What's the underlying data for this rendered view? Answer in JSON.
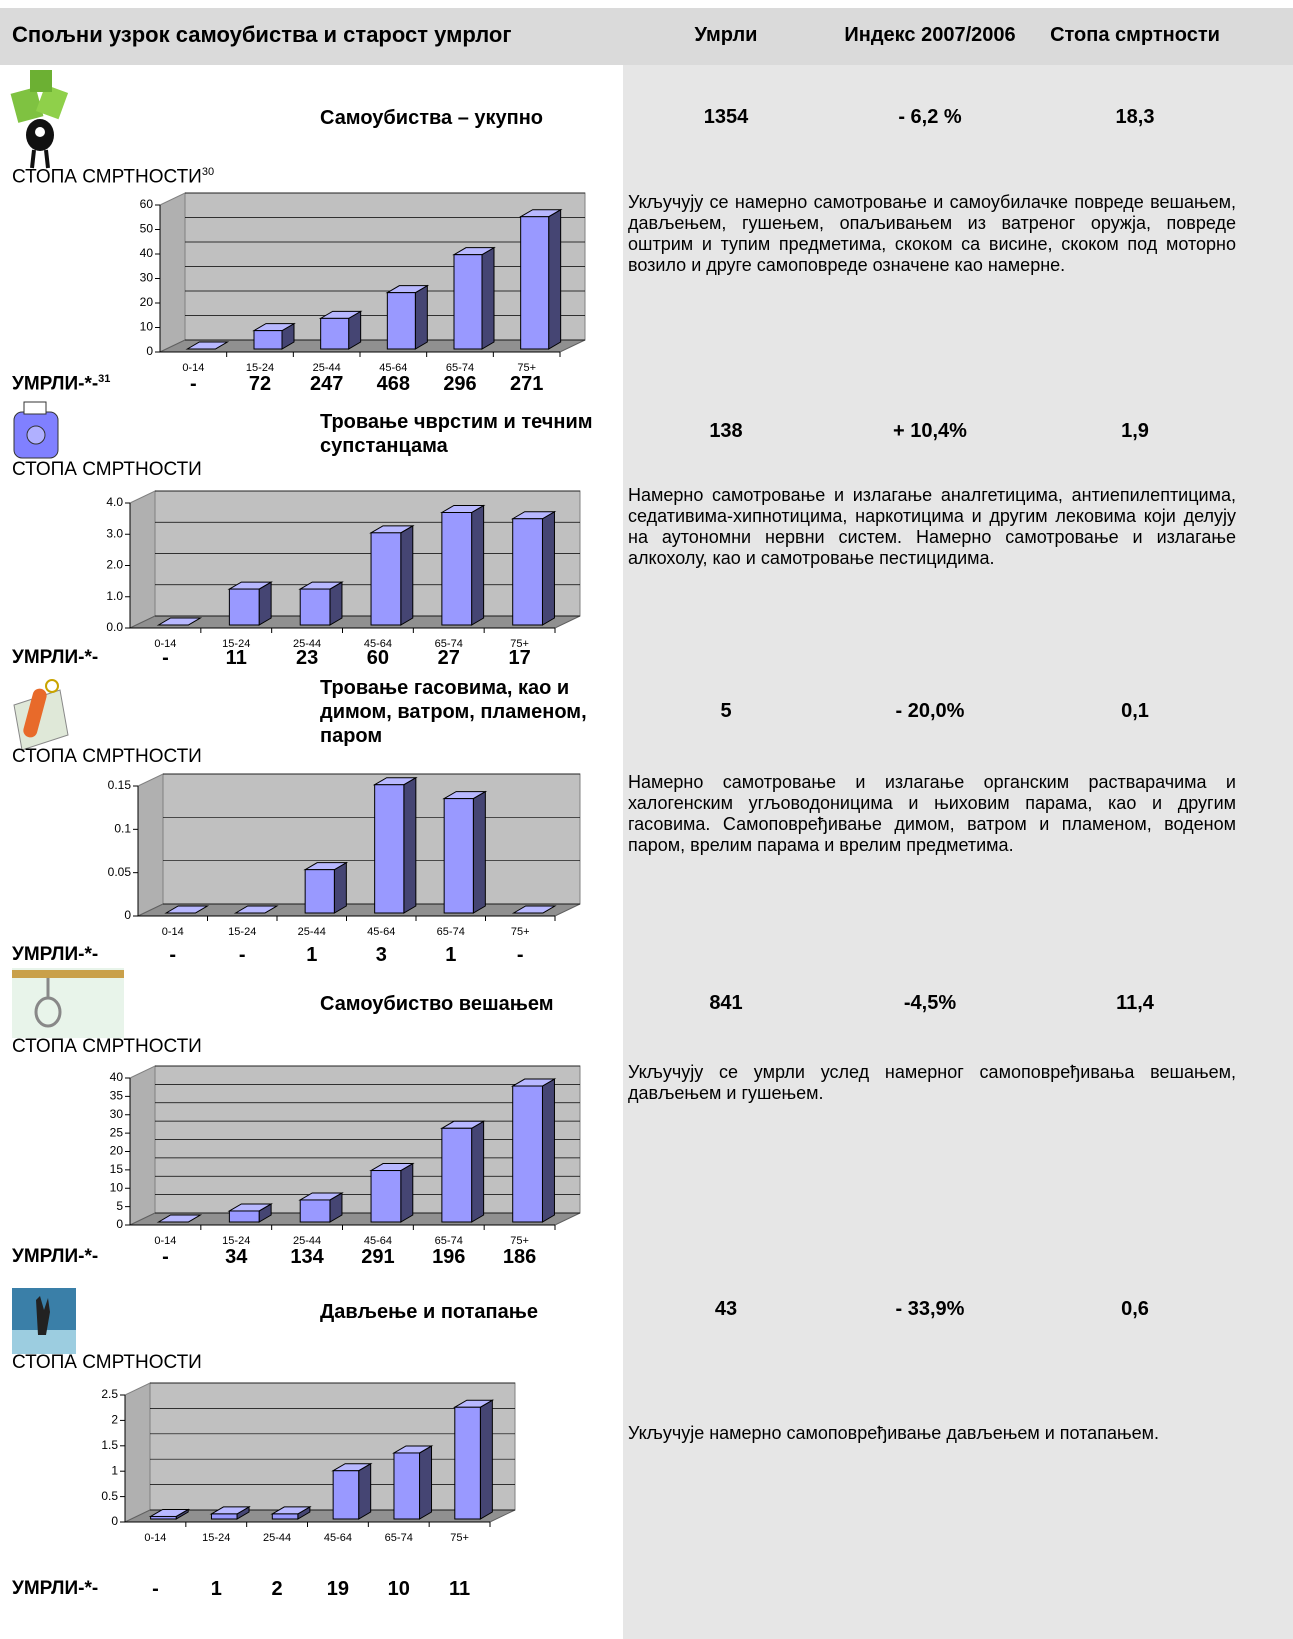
{
  "header": {
    "title": "Спољни узрок самоубиства и старост умрлог",
    "columns": [
      "Умрли",
      "Индекс 2007/2006",
      "Стопа смртности"
    ]
  },
  "sections": [
    {
      "title": "Самоубиства – укупно",
      "deaths_total": "1354",
      "index": "- 6,2 %",
      "rate": "18,3",
      "rate_label": "СТОПА СМРТНОСТИ",
      "rate_label_note": "30",
      "deaths_label": "УМРЛИ-*-",
      "deaths_label_note": "31",
      "deaths": [
        "-",
        "72",
        "247",
        "468",
        "296",
        "271"
      ],
      "description": "Укључују се намерно самотровање и самоубилачке повреде вешањем, дављењем, гушењем, опаљивањем из ватреног оружја, повреде оштрим и тупим предметима, скоком са висине, скоком под моторно возило и друге самоповреде означене као намерне."
    },
    {
      "title": "Тровање чврстим и течним супстанцама",
      "deaths_total": "138",
      "index": "+ 10,4%",
      "rate": "1,9",
      "rate_label": "СТОПА СМРТНОСТИ",
      "deaths_label": "УМРЛИ-*-",
      "deaths": [
        "-",
        "11",
        "23",
        "60",
        "27",
        "17"
      ],
      "description": "Намерно самотровање и излагање аналгетицима, антиепилептицима, седативима-хипнотицима, наркотицима и другим лековима који делују на аутономни нервни систем. Намерно самотровање и излагање алкохолу, као и самотровање пестицидима."
    },
    {
      "title": "Тровање гасовима, као и димом, ватром, пламеном, паром",
      "deaths_total": "5",
      "index": "- 20,0%",
      "rate": "0,1",
      "rate_label": "СТОПА СМРТНОСТИ",
      "deaths_label": "УМРЛИ-*-",
      "deaths": [
        "-",
        "-",
        "1",
        "3",
        "1",
        "-"
      ],
      "description": "Намерно самотровање и излагање органским растварачима и халогенским угљоводоницима и њиховим парама, као и другим гасовима. Самоповређивање димом, ватром и пламеном, воденом паром, врелим парама и врелим предметима."
    },
    {
      "title": "Самоубиство вешањем",
      "deaths_total": "841",
      "index": "-4,5%",
      "rate": "11,4",
      "rate_label": "СТОПА СМРТНОСТИ",
      "deaths_label": "УМРЛИ-*-",
      "deaths": [
        "-",
        "34",
        "134",
        "291",
        "196",
        "186"
      ],
      "description": "Укључују се умрли услед намерног самоповређивања вешањем, дављењем и гушењем."
    },
    {
      "title": "Дављење и потапање",
      "deaths_total": "43",
      "index": "- 33,9%",
      "rate": "0,6",
      "rate_label": "СТОПА СМРТНОСТИ",
      "deaths_label": "УМРЛИ-*-",
      "deaths": [
        "-",
        "1",
        "2",
        "19",
        "10",
        "11"
      ],
      "description": "Укључује намерно самоповређивање дављењем и потапањем."
    }
  ],
  "chart_data": [
    {
      "type": "bar",
      "categories": [
        "0-14",
        "15-24",
        "25-44",
        "45-64",
        "65-74",
        "75+"
      ],
      "values": [
        0,
        7.5,
        12.5,
        23,
        38.5,
        54
      ],
      "color": "#9999ff",
      "ylim": [
        0,
        60
      ],
      "yticks": [
        0,
        10,
        20,
        30,
        40,
        50,
        60
      ],
      "grid": true
    },
    {
      "type": "bar",
      "categories": [
        "0-14",
        "15-24",
        "25-44",
        "45-64",
        "65-74",
        "75+"
      ],
      "values": [
        0,
        1.15,
        1.15,
        2.95,
        3.6,
        3.4
      ],
      "color": "#9999ff",
      "ylim": [
        0,
        4
      ],
      "yticks": [
        {
          "value": 0,
          "label": "0.0"
        },
        {
          "value": 1,
          "label": "1.0"
        },
        {
          "value": 2,
          "label": "2.0"
        },
        {
          "value": 3,
          "label": "3.0"
        },
        {
          "value": 4,
          "label": "4.0"
        }
      ],
      "grid": true
    },
    {
      "type": "bar",
      "categories": [
        "0-14",
        "15-24",
        "25-44",
        "45-64",
        "65-74",
        "75+"
      ],
      "values": [
        0,
        0,
        0.05,
        0.148,
        0.132,
        0
      ],
      "color": "#9999ff",
      "ylim": [
        0,
        0.15
      ],
      "yticks": [
        0,
        0.05,
        0.1,
        0.15
      ],
      "grid": true
    },
    {
      "type": "bar",
      "categories": [
        "0-14",
        "15-24",
        "25-44",
        "45-64",
        "65-74",
        "75+"
      ],
      "values": [
        0,
        3,
        6,
        14,
        25.5,
        37
      ],
      "color": "#9999ff",
      "ylim": [
        0,
        40
      ],
      "yticks": [
        0,
        5,
        10,
        15,
        20,
        25,
        30,
        35,
        40
      ],
      "grid": true
    },
    {
      "type": "bar",
      "categories": [
        "0-14",
        "15-24",
        "25-44",
        "45-64",
        "65-74",
        "75+"
      ],
      "values": [
        0.05,
        0.1,
        0.1,
        0.95,
        1.3,
        2.2
      ],
      "color": "#9999ff",
      "ylim": [
        0,
        2.5
      ],
      "yticks": [
        0,
        0.5,
        1,
        1.5,
        2,
        2.5
      ],
      "grid": true
    }
  ]
}
